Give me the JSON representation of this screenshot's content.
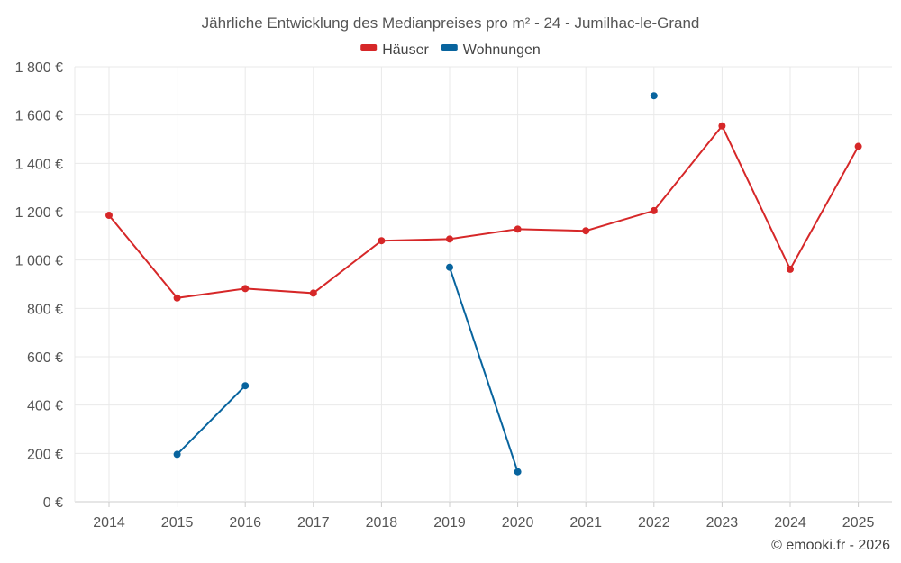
{
  "chart_data": {
    "type": "line",
    "title": "Jährliche Entwicklung des Medianpreises pro m² - 24 - Jumilhac-le-Grand",
    "x": [
      2014,
      2015,
      2016,
      2017,
      2018,
      2019,
      2020,
      2021,
      2022,
      2023,
      2024,
      2025
    ],
    "x_tick_labels": [
      "2014",
      "2015",
      "2016",
      "2017",
      "2018",
      "2019",
      "2020",
      "2021",
      "2022",
      "2023",
      "2024",
      "2025"
    ],
    "ylim": [
      0,
      1800
    ],
    "y_ticks": [
      0,
      200,
      400,
      600,
      800,
      1000,
      1200,
      1400,
      1600,
      1800
    ],
    "y_tick_labels": [
      "0 €",
      "200 €",
      "400 €",
      "600 €",
      "800 €",
      "1 000 €",
      "1 200 €",
      "1 400 €",
      "1 600 €",
      "1 800 €"
    ],
    "xlabel": "",
    "ylabel": "",
    "grid": true,
    "legend_position": "top-center",
    "series": [
      {
        "name": "Häuser",
        "color": "#d62728",
        "values": [
          1185,
          843,
          882,
          863,
          1080,
          1087,
          1128,
          1121,
          1204,
          1555,
          962,
          1470
        ]
      },
      {
        "name": "Wohnungen",
        "color": "#08649e",
        "values": [
          null,
          196,
          480,
          null,
          null,
          970,
          124,
          null,
          1680,
          null,
          null,
          null
        ]
      }
    ]
  },
  "credit": "© emooki.fr - 2026"
}
